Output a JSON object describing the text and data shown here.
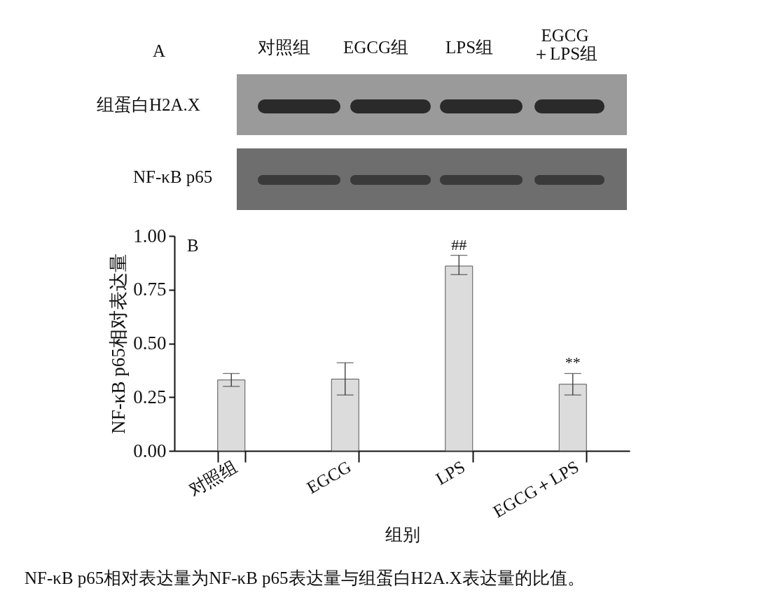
{
  "chart_data": {
    "type": "bar",
    "ylabel": "NF-κB p65相对表达量",
    "xlabel": "组别",
    "categories": [
      "对照组",
      "EGCG",
      "LPS",
      "EGCG＋LPS"
    ],
    "values": [
      0.33,
      0.334,
      0.86,
      0.31
    ],
    "errors": [
      [
        0.3,
        0.36
      ],
      [
        0.26,
        0.41
      ],
      [
        0.82,
        0.91
      ],
      [
        0.26,
        0.36
      ]
    ],
    "color": "#dcdcdc",
    "ylim": [
      0,
      1
    ],
    "yticks": [
      {
        "value": 0,
        "label": "0.00"
      },
      {
        "value": 0.25,
        "label": "0.25"
      },
      {
        "value": 0.5,
        "label": "0.50"
      },
      {
        "value": 0.75,
        "label": "0.75"
      },
      {
        "value": 1,
        "label": "1.00"
      }
    ],
    "grid": false,
    "annotations": [
      "A",
      "对照组",
      "EGCG组",
      "LPS组",
      "EGCG\n＋LPS组",
      "组蛋白H2A.X",
      "NF-κB p65",
      "B",
      "NF-κB p65相对表达量为NF-κB p65表达量与组蛋白H2A.X表达量的比值。",
      "##",
      "**"
    ]
  }
}
